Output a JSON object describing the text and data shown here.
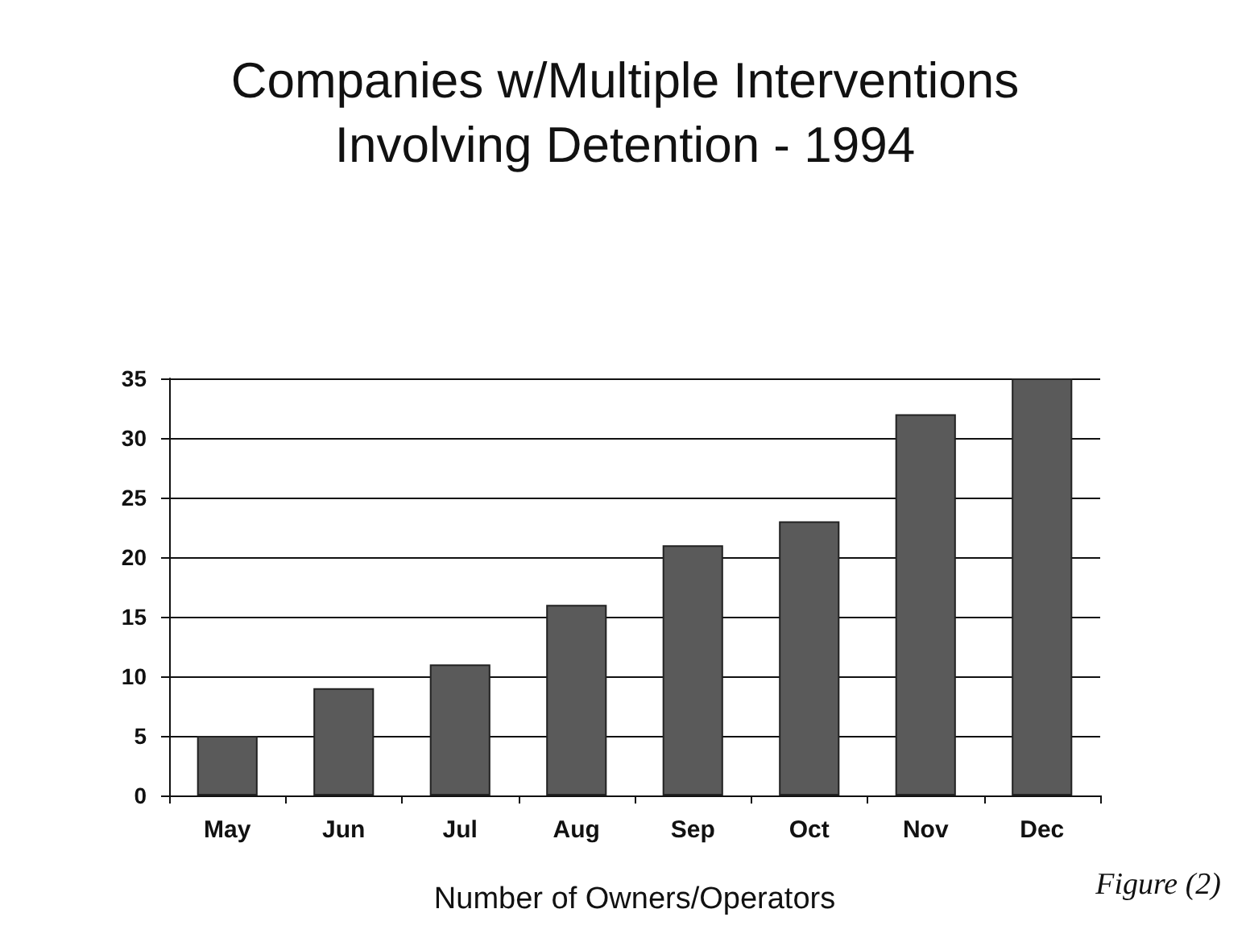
{
  "chart_data": {
    "type": "bar",
    "title": "Companies w/Multiple Interventions\nInvolving Detention - 1994",
    "xlabel": "Number of Owners/Operators",
    "annotations": [
      "Figure (2)"
    ],
    "categories": [
      "May",
      "Jun",
      "Jul",
      "Aug",
      "Sep",
      "Oct",
      "Nov",
      "Dec"
    ],
    "values": [
      5,
      9,
      11,
      16,
      21,
      23,
      32,
      35
    ],
    "color": "#5a5a5a",
    "ylim": [
      0,
      35
    ],
    "yticks": [
      0,
      5,
      10,
      15,
      20,
      25,
      30,
      35
    ],
    "grid": "y"
  }
}
